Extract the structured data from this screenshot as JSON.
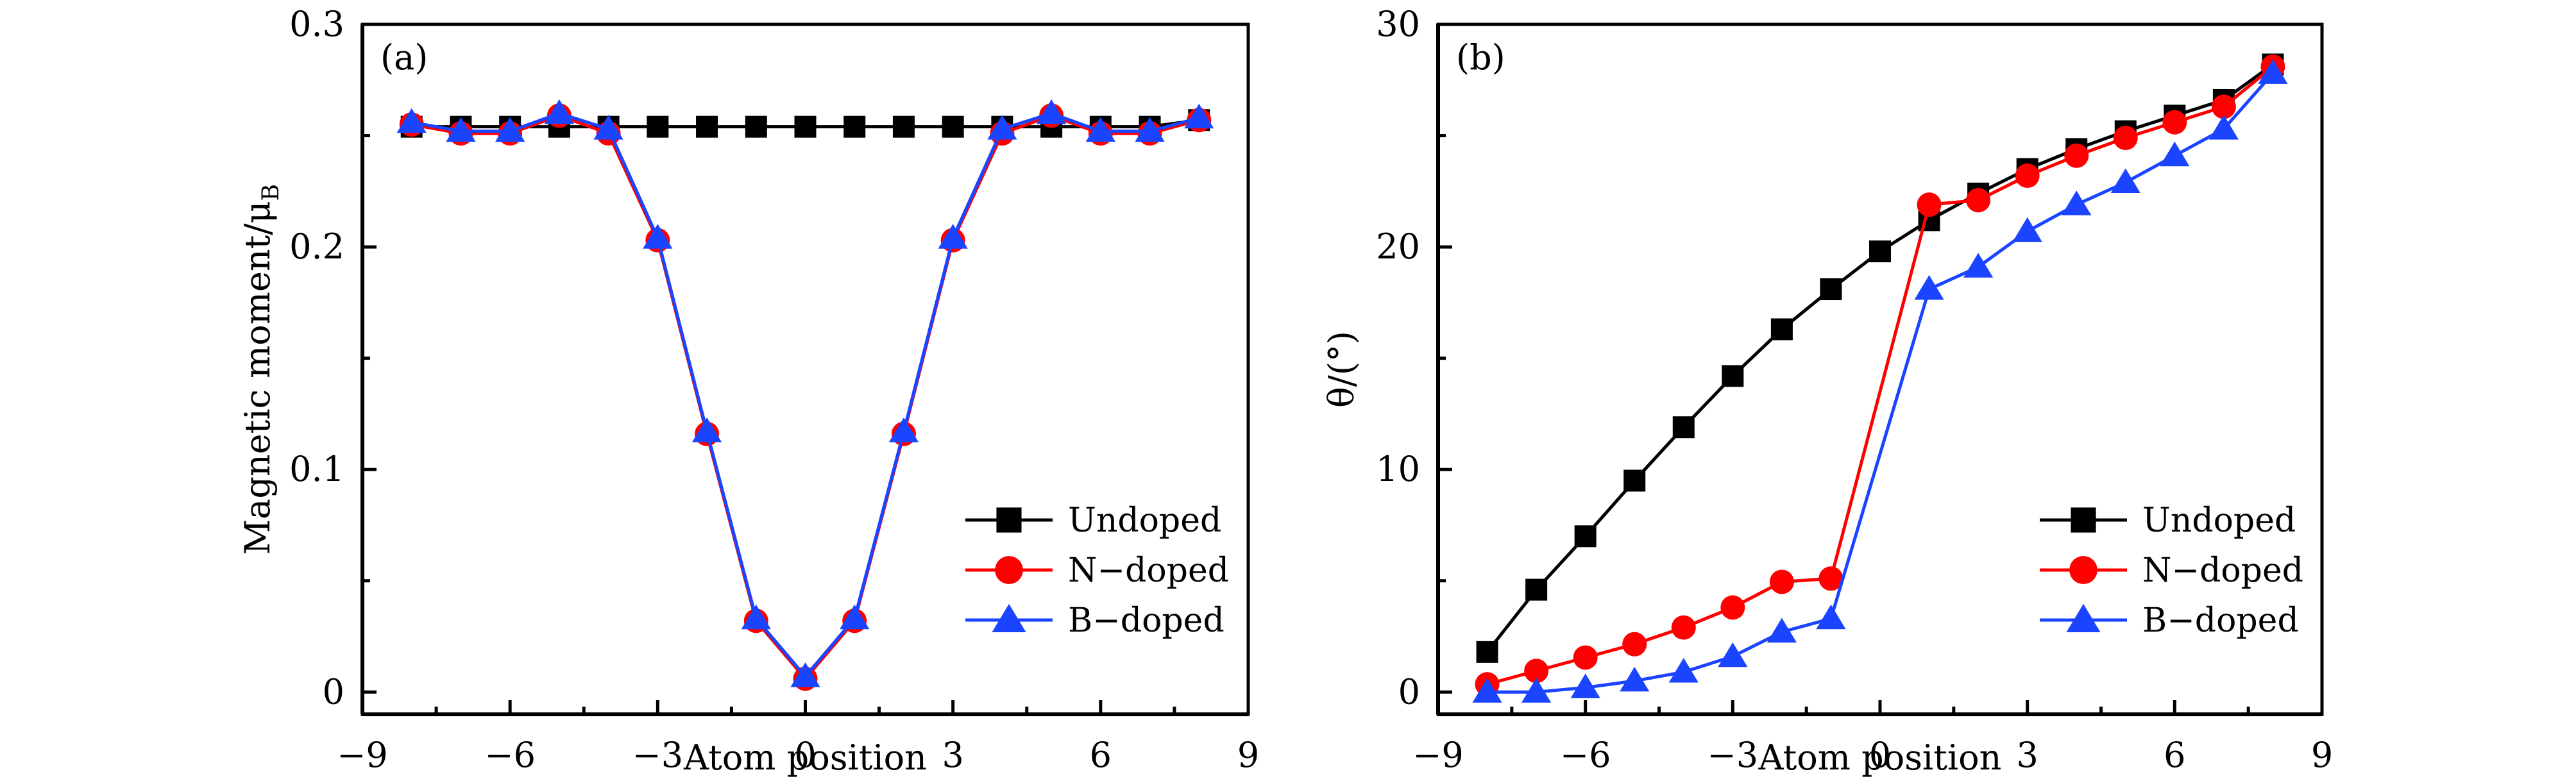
{
  "chart_data": [
    {
      "type": "line",
      "panel_label": "(a)",
      "title": "",
      "xlabel": "Atom position",
      "ylabel": "Magnetic moment/μ",
      "ylabel_subscript": "B",
      "xlim": [
        -9,
        9
      ],
      "ylim": [
        -0.01,
        0.3
      ],
      "x_ticks": [
        -9,
        -6,
        -3,
        0,
        3,
        6,
        9
      ],
      "x_tick_labels": [
        "−9",
        "−6",
        "−3",
        "0",
        "3",
        "6",
        "9"
      ],
      "x_minor_ticks": [
        -7.5,
        -4.5,
        -1.5,
        1.5,
        4.5,
        7.5
      ],
      "y_ticks": [
        0,
        0.1,
        0.2,
        0.3
      ],
      "y_tick_labels": [
        "0",
        "0.1",
        "0.2",
        "0.3"
      ],
      "y_minor_ticks": [
        0.05,
        0.15,
        0.25
      ],
      "grid": false,
      "legend_position": "bottom-right",
      "x": [
        -8,
        -7,
        -6,
        -5,
        -4,
        -3,
        -2,
        -1,
        0,
        1,
        2,
        3,
        4,
        5,
        6,
        7,
        8
      ],
      "series": [
        {
          "name": "Undoped",
          "color": "#000000",
          "marker": "square",
          "values": [
            0.254,
            0.254,
            0.254,
            0.254,
            0.254,
            0.254,
            0.254,
            0.254,
            0.254,
            0.254,
            0.254,
            0.254,
            0.254,
            0.254,
            0.254,
            0.254,
            0.257
          ]
        },
        {
          "name": "N−doped",
          "color": "#ff0000",
          "marker": "circle",
          "values": [
            0.255,
            0.251,
            0.251,
            0.259,
            0.251,
            0.203,
            0.116,
            0.032,
            0.006,
            0.032,
            0.116,
            0.203,
            0.251,
            0.259,
            0.251,
            0.251,
            0.257
          ]
        },
        {
          "name": "B−doped",
          "color": "#1a44ff",
          "marker": "triangle",
          "values": [
            0.256,
            0.252,
            0.252,
            0.26,
            0.253,
            0.204,
            0.117,
            0.033,
            0.007,
            0.033,
            0.117,
            0.204,
            0.253,
            0.26,
            0.252,
            0.252,
            0.258
          ]
        }
      ]
    },
    {
      "type": "line",
      "panel_label": "(b)",
      "title": "",
      "xlabel": "Atom position",
      "ylabel": "θ/(°)",
      "xlim": [
        -9,
        9
      ],
      "ylim": [
        -1,
        30
      ],
      "x_ticks": [
        -9,
        -6,
        -3,
        0,
        3,
        6,
        9
      ],
      "x_tick_labels": [
        "−9",
        "−6",
        "−3",
        "0",
        "3",
        "6",
        "9"
      ],
      "x_minor_ticks": [
        -7.5,
        -4.5,
        -1.5,
        1.5,
        4.5,
        7.5
      ],
      "y_ticks": [
        0,
        10,
        20,
        30
      ],
      "y_tick_labels": [
        "0",
        "10",
        "20",
        "30"
      ],
      "y_minor_ticks": [
        5,
        15,
        25
      ],
      "grid": false,
      "legend_position": "bottom-right",
      "series": [
        {
          "name": "Undoped",
          "color": "#000000",
          "marker": "square",
          "x": [
            -8,
            -7,
            -6,
            -5,
            -4,
            -3,
            -2,
            -1,
            0,
            1,
            2,
            3,
            4,
            5,
            6,
            7,
            8
          ],
          "values": [
            1.8,
            4.6,
            7.0,
            9.5,
            11.9,
            14.2,
            16.3,
            18.1,
            19.8,
            21.2,
            22.4,
            23.5,
            24.4,
            25.2,
            25.9,
            26.6,
            28.2
          ]
        },
        {
          "name": "N−doped",
          "color": "#ff0000",
          "marker": "circle",
          "x": [
            -8,
            -7,
            -6,
            -5,
            -4,
            -3,
            -2,
            -1,
            1,
            2,
            3,
            4,
            5,
            6,
            7,
            8
          ],
          "values": [
            0.35,
            0.95,
            1.55,
            2.15,
            2.9,
            3.8,
            4.95,
            5.1,
            21.9,
            22.1,
            23.2,
            24.1,
            24.9,
            25.6,
            26.3,
            28.1
          ]
        },
        {
          "name": "B−doped",
          "color": "#1a44ff",
          "marker": "triangle",
          "x": [
            -8,
            -7,
            -6,
            -5,
            -4,
            -3,
            -2,
            -1,
            1,
            2,
            3,
            4,
            5,
            6,
            7,
            8
          ],
          "values": [
            0.0,
            0.0,
            0.2,
            0.5,
            0.9,
            1.6,
            2.7,
            3.3,
            18.1,
            19.1,
            20.7,
            21.9,
            22.9,
            24.1,
            25.3,
            27.8
          ]
        }
      ]
    }
  ]
}
